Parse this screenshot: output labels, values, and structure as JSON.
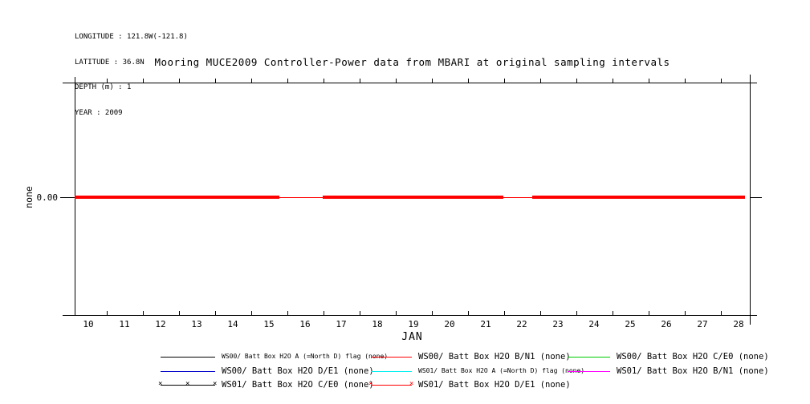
{
  "metadata": {
    "longitude": "LONGITUDE : 121.8W(-121.8)",
    "latitude": "LATITUDE : 36.8N",
    "depth": "DEPTH (m) : 1",
    "year": "YEAR : 2009"
  },
  "title": "Mooring MUCE2009 Controller-Power data from MBARI at original sampling intervals",
  "chart_data": {
    "type": "line",
    "title": "Mooring MUCE2009 Controller-Power data from MBARI at original sampling intervals",
    "xlabel": "JAN",
    "ylabel": "none",
    "x_tick_labels": [
      "10",
      "11",
      "12",
      "13",
      "14",
      "15",
      "16",
      "17",
      "18",
      "19",
      "20",
      "21",
      "22",
      "23",
      "24",
      "25",
      "26",
      "27",
      "28"
    ],
    "y_tick_labels": [
      "0.00"
    ],
    "x_range_days": [
      9.6,
      28.2
    ],
    "y_value": 0.0,
    "grid": false,
    "legend_position": "below",
    "series": [
      {
        "name": "WS00/ Batt Box H2O A (=North D) flag (none)",
        "color": "#000000",
        "markers": false,
        "small_font": true,
        "constant_value": 0.0
      },
      {
        "name": "WS00/ Batt Box H2O B/N1 (none)",
        "color": "#ff0000",
        "markers": false,
        "small_font": false,
        "constant_value": 0.0
      },
      {
        "name": "WS00/ Batt Box H2O C/E0 (none)",
        "color": "#00cc00",
        "markers": false,
        "small_font": false,
        "constant_value": 0.0
      },
      {
        "name": "WS00/ Batt Box H2O D/E1 (none)",
        "color": "#0000cc",
        "markers": false,
        "small_font": false,
        "constant_value": 0.0
      },
      {
        "name": "WS01/ Batt Box H2O A (=North D) flag (none)",
        "color": "#00eeee",
        "markers": false,
        "small_font": true,
        "constant_value": 0.0
      },
      {
        "name": "WS01/ Batt Box H2O B/N1 (none)",
        "color": "#ff00ff",
        "markers": false,
        "small_font": false,
        "constant_value": 0.0
      },
      {
        "name": "WS01/ Batt Box H2O C/E0 (none)",
        "color": "#000000",
        "markers": true,
        "small_font": false,
        "constant_value": 0.0
      },
      {
        "name": "WS01/ Batt Box H2O D/E1 (none)",
        "color": "#ff0000",
        "markers": true,
        "small_font": false,
        "constant_value": 0.0
      }
    ],
    "visible_line": {
      "color": "#ff0000",
      "y": 0.0,
      "segments": [
        {
          "start_day": 9.62,
          "end_day": 15.29,
          "weight": "thick"
        },
        {
          "start_day": 15.29,
          "end_day": 16.49,
          "weight": "thin"
        },
        {
          "start_day": 16.49,
          "end_day": 21.49,
          "weight": "thick"
        },
        {
          "start_day": 21.49,
          "end_day": 22.29,
          "weight": "thin"
        },
        {
          "start_day": 22.29,
          "end_day": 28.18,
          "weight": "thick"
        }
      ]
    }
  }
}
